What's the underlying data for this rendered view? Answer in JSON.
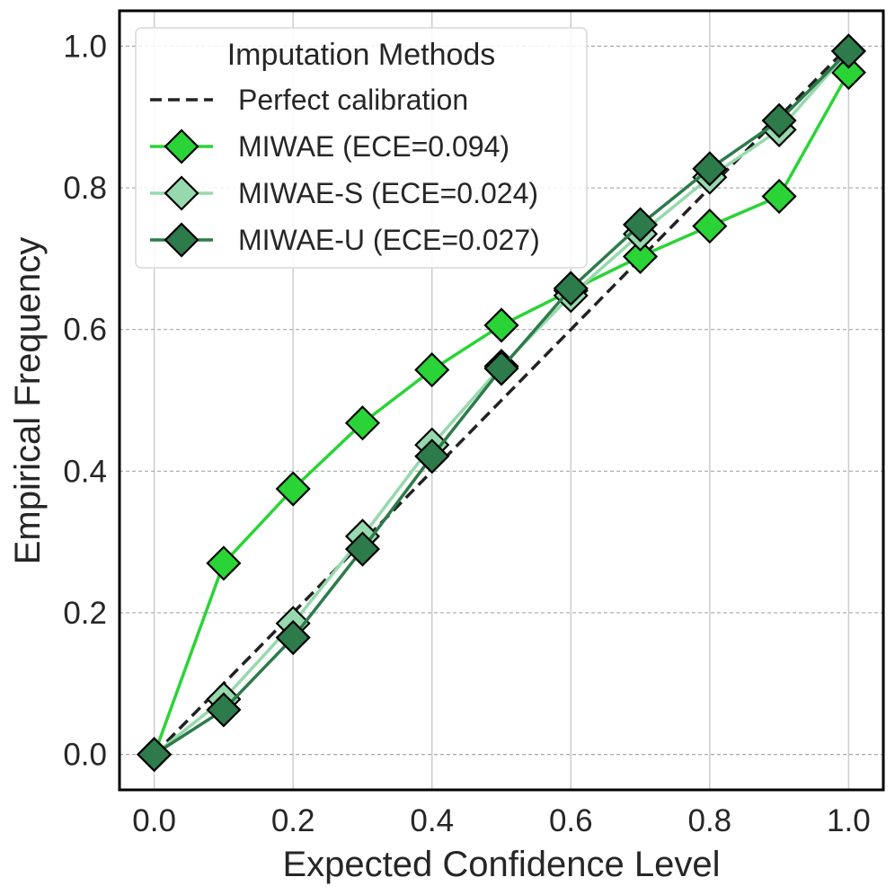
{
  "chart_data": {
    "type": "line",
    "xlabel": "Expected Confidence Level",
    "ylabel": "Empirical Frequency",
    "xlim": [
      -0.05,
      1.05
    ],
    "ylim": [
      -0.05,
      1.05
    ],
    "xticks": [
      "0.0",
      "0.2",
      "0.4",
      "0.6",
      "0.8",
      "1.0"
    ],
    "yticks": [
      "0.0",
      "0.2",
      "0.4",
      "0.6",
      "0.8",
      "1.0"
    ],
    "grid": true,
    "legend": {
      "title": "Imputation Methods",
      "placement": "top-left"
    },
    "x": [
      0.0,
      0.1,
      0.2,
      0.3,
      0.4,
      0.5,
      0.6,
      0.7,
      0.8,
      0.9,
      1.0
    ],
    "reference_line": {
      "name": "Perfect calibration",
      "x": [
        0.0,
        1.0
      ],
      "y": [
        0.0,
        1.0
      ],
      "color": "#222222",
      "style": "dashed"
    },
    "series": [
      {
        "name": "MIWAE (ECE=0.094)",
        "color": "#2ad436",
        "marker": "diamond",
        "values": [
          0.0,
          0.27,
          0.375,
          0.468,
          0.543,
          0.606,
          0.655,
          0.703,
          0.746,
          0.788,
          0.963
        ]
      },
      {
        "name": "MIWAE-S (ECE=0.024)",
        "color": "#96d9ac",
        "marker": "diamond",
        "values": [
          0.0,
          0.078,
          0.185,
          0.308,
          0.437,
          0.548,
          0.648,
          0.735,
          0.815,
          0.882,
          0.993
        ]
      },
      {
        "name": "MIWAE-U (ECE=0.027)",
        "color": "#2d7b4a",
        "marker": "diamond",
        "values": [
          0.0,
          0.063,
          0.165,
          0.29,
          0.421,
          0.545,
          0.658,
          0.748,
          0.827,
          0.895,
          0.993
        ]
      }
    ]
  }
}
